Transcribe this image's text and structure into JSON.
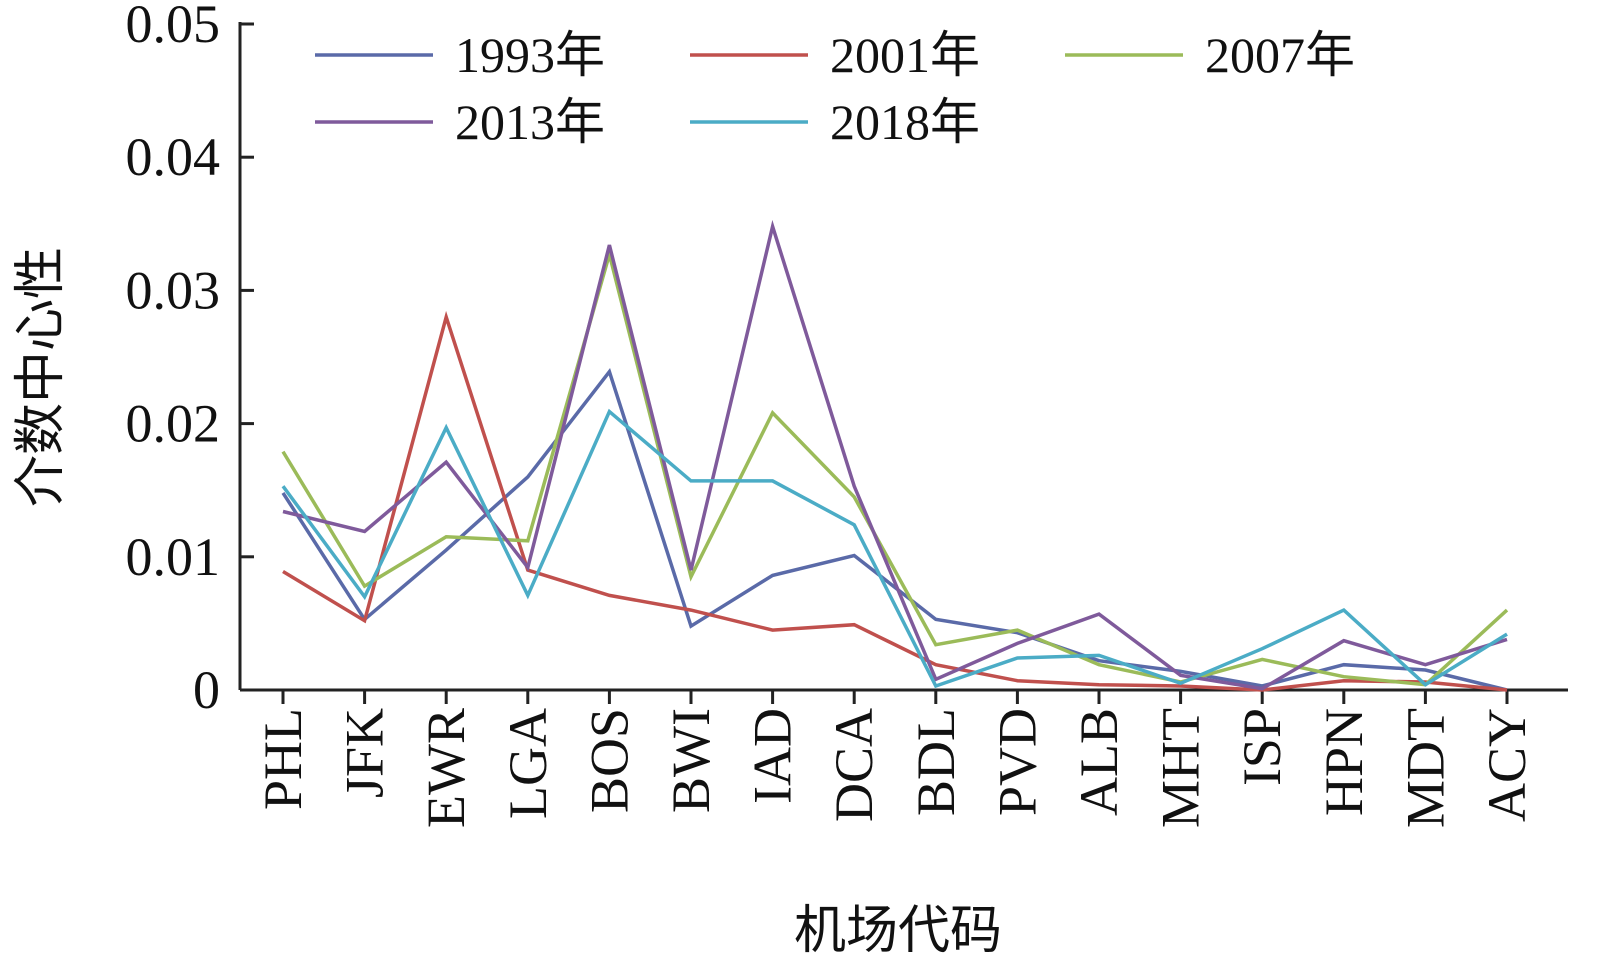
{
  "chart_data": {
    "type": "line",
    "title": "",
    "xlabel": "机场代码",
    "ylabel": "介数中心性",
    "categories": [
      "PHL",
      "JFK",
      "EWR",
      "LGA",
      "BOS",
      "BWI",
      "IAD",
      "DCA",
      "BDL",
      "PVD",
      "ALB",
      "MHT",
      "ISP",
      "HPN",
      "MDT",
      "ACY"
    ],
    "ylim": [
      0,
      0.05
    ],
    "yticks": [
      0,
      0.01,
      0.02,
      0.03,
      0.04,
      0.05
    ],
    "ytick_labels": [
      "0",
      "0.01",
      "0.02",
      "0.03",
      "0.04",
      "0.05"
    ],
    "grid": false,
    "legend_position": "top",
    "series": [
      {
        "name": "1993年",
        "color": "#5a6aa8",
        "values": [
          0.0148,
          0.0053,
          0.0105,
          0.016,
          0.0239,
          0.0048,
          0.0086,
          0.0101,
          0.0053,
          0.0043,
          0.0022,
          0.0014,
          0.0003,
          0.0019,
          0.0015,
          0.0
        ]
      },
      {
        "name": "2001年",
        "color": "#c0504d",
        "values": [
          0.0089,
          0.0052,
          0.028,
          0.009,
          0.0071,
          0.006,
          0.0045,
          0.0049,
          0.0019,
          0.0007,
          0.0004,
          0.0003,
          0.0,
          0.0007,
          0.0006,
          0.0
        ]
      },
      {
        "name": "2007年",
        "color": "#9bbb59",
        "values": [
          0.0179,
          0.0078,
          0.0115,
          0.0112,
          0.0327,
          0.0085,
          0.0208,
          0.0145,
          0.0034,
          0.0045,
          0.0019,
          0.0006,
          0.0023,
          0.001,
          0.0004,
          0.006
        ]
      },
      {
        "name": "2013年",
        "color": "#7f5a9b",
        "values": [
          0.0134,
          0.0119,
          0.0171,
          0.0092,
          0.0334,
          0.009,
          0.0348,
          0.0153,
          0.0008,
          0.0035,
          0.0057,
          0.0011,
          0.0001,
          0.0037,
          0.0019,
          0.0038
        ]
      },
      {
        "name": "2018年",
        "color": "#4bacc6",
        "values": [
          0.0153,
          0.007,
          0.0197,
          0.0071,
          0.0209,
          0.0157,
          0.0157,
          0.0124,
          0.0003,
          0.0024,
          0.0026,
          0.0005,
          0.0031,
          0.006,
          0.0004,
          0.0042
        ]
      }
    ]
  }
}
